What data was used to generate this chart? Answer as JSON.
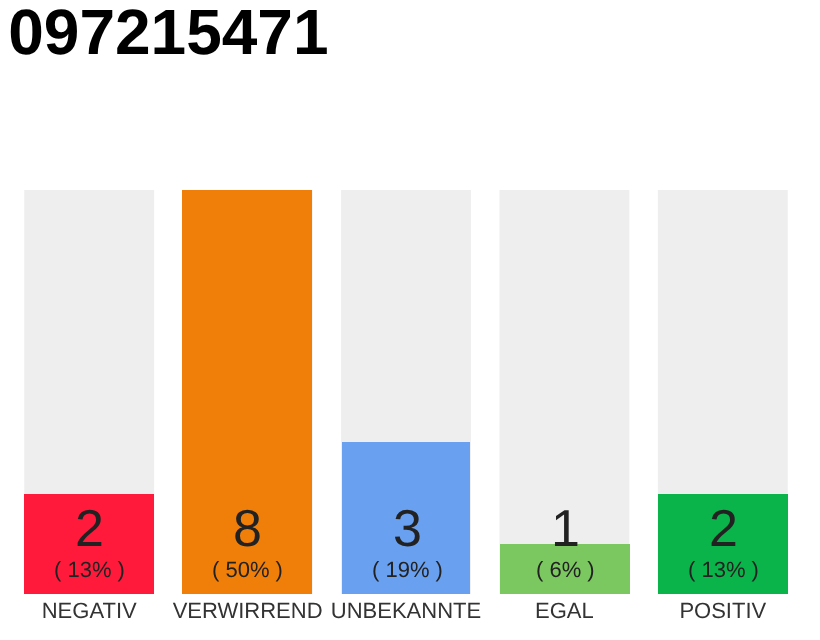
{
  "chart_data": {
    "type": "bar",
    "title": "097215471",
    "categories": [
      "NEGATIV",
      "VERWIRREND",
      "UNBEKANNTE",
      "EGAL",
      "POSITIV"
    ],
    "values": [
      2,
      8,
      3,
      1,
      2
    ],
    "colors": [
      "#ff1a3c",
      "#f07f0a",
      "#6aa0f0",
      "#7cc860",
      "#0ab44a"
    ],
    "value_labels": [
      "2\n( 13% )",
      "8\n( 50% )",
      "3\n( 19% )",
      "1\n( 6% )",
      "2\n( 13% )"
    ],
    "ylim": [
      0,
      8
    ],
    "grid": false,
    "legend": false
  }
}
